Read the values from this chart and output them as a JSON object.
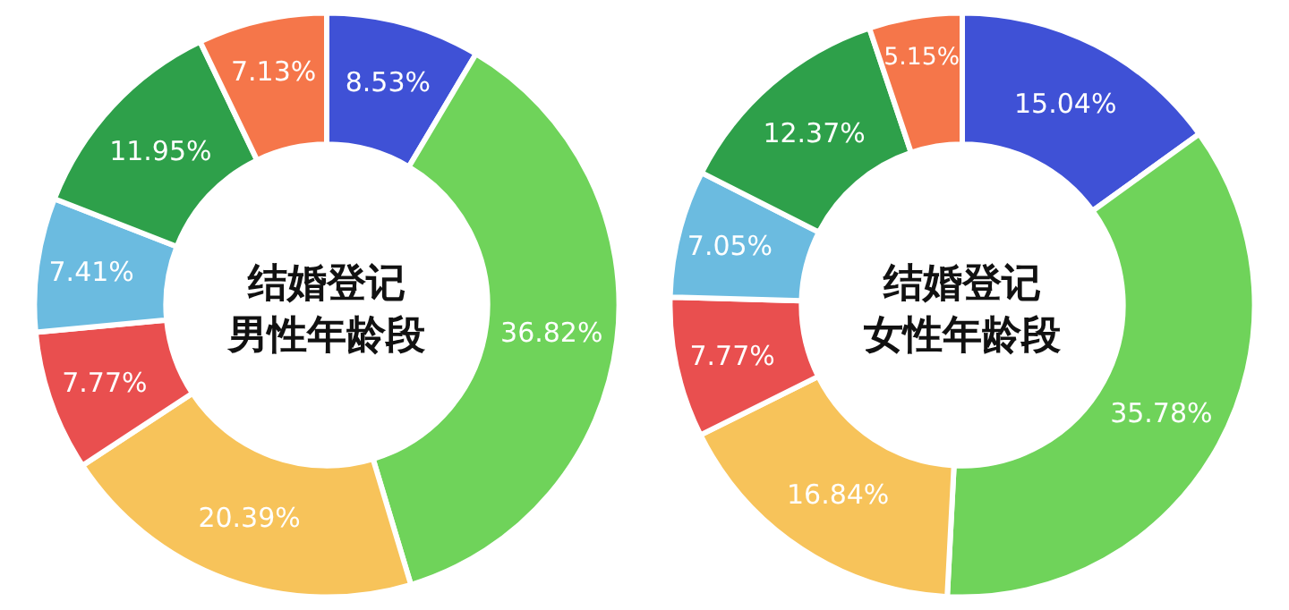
{
  "chart_data": [
    {
      "type": "donut",
      "title": "结婚登记男性年龄段",
      "categories": [
        null,
        null,
        null,
        null,
        null,
        null,
        null
      ],
      "values": [
        8.53,
        36.82,
        20.39,
        7.77,
        7.41,
        11.95,
        7.13
      ],
      "value_labels": [
        "8.53%",
        "36.82%",
        "20.39%",
        "7.77%",
        "7.41%",
        "11.95%",
        "7.13%"
      ],
      "colors": [
        "#3f51d6",
        "#6fd35a",
        "#f7c35a",
        "#e94f4f",
        "#6bbbe0",
        "#2ea04a",
        "#f5764a"
      ]
    },
    {
      "type": "donut",
      "title": "结婚登记女性年龄段",
      "categories": [
        null,
        null,
        null,
        null,
        null,
        null,
        null
      ],
      "values": [
        15.04,
        35.78,
        16.84,
        7.77,
        7.05,
        12.37,
        5.15
      ],
      "value_labels": [
        "15.04%",
        "35.78%",
        "16.84%",
        "7.77%",
        "7.05%",
        "12.37%",
        "5.15%"
      ],
      "colors": [
        "#3f51d6",
        "#6fd35a",
        "#f7c35a",
        "#e94f4f",
        "#6bbbe0",
        "#2ea04a",
        "#f5764a"
      ]
    }
  ]
}
